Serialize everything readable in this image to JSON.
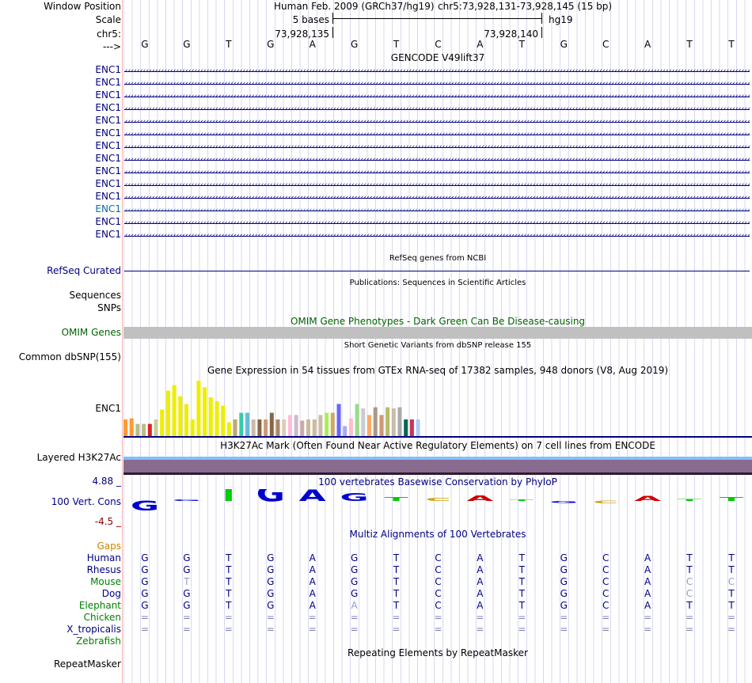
{
  "ruler": {
    "window_position_label": "Window Position",
    "scale_label": "Scale",
    "chrom_label": "chr5:",
    "strand_label": "--->",
    "assembly": "Human Feb. 2009 (GRCh37/hg19)",
    "position": "chr5:73,928,131-73,928,145 (15 bp)",
    "scale_text": "5 bases",
    "db": "hg19",
    "pos_left": "73,928,135",
    "pos_right": "73,928,140"
  },
  "bases": [
    "G",
    "G",
    "T",
    "G",
    "A",
    "G",
    "T",
    "C",
    "A",
    "T",
    "G",
    "C",
    "A",
    "T",
    "T"
  ],
  "gencode": {
    "title": "GENCODE V49lift37",
    "labels": [
      "ENC1",
      "ENC1",
      "ENC1",
      "ENC1",
      "ENC1",
      "ENC1",
      "ENC1",
      "ENC1",
      "ENC1",
      "ENC1",
      "ENC1",
      "ENC1",
      "ENC1",
      "ENC1"
    ],
    "colors": [
      "#000080",
      "#000080",
      "#000080",
      "#000080",
      "#000080",
      "#000080",
      "#000080",
      "#000080",
      "#000080",
      "#000080",
      "#000080",
      "#0c6e9f",
      "#000080",
      "#000080"
    ]
  },
  "refseq": {
    "title": "RefSeq genes from NCBI",
    "label": "RefSeq Curated"
  },
  "publications": {
    "title": "Publications: Sequences in Scientific Articles",
    "label1": "Sequences",
    "label2": "SNPs"
  },
  "omim": {
    "title": "OMIM Gene Phenotypes - Dark Green Can Be Disease-causing",
    "label": "OMIM Genes"
  },
  "dbsnp": {
    "title": "Short Genetic Variants from dbSNP release 155",
    "label": "Common dbSNP(155)"
  },
  "gtex": {
    "title": "Gene Expression in 54 tissues from GTEx RNA-seq of 17382 samples, 948 donors (V8, Aug 2019)",
    "label": "ENC1",
    "values": [
      0.3,
      0.32,
      0.22,
      0.22,
      0.22,
      0.3,
      0.48,
      0.82,
      0.92,
      0.72,
      0.58,
      0.3,
      1.0,
      0.88,
      0.7,
      0.63,
      0.55,
      0.25,
      0.3,
      0.42,
      0.42,
      0.3,
      0.3,
      0.3,
      0.42,
      0.3,
      0.3,
      0.38,
      0.38,
      0.28,
      0.3,
      0.3,
      0.38,
      0.42,
      0.42,
      0.58,
      0.18,
      0.32,
      0.58,
      0.5,
      0.38,
      0.52,
      0.38,
      0.52,
      0.5,
      0.52,
      0.3,
      0.3,
      0.3
    ],
    "colors": [
      "#ff9933",
      "#ff9933",
      "#bbbb88",
      "#bbbb88",
      "#dd2222",
      "#cccc99",
      "#eeee00",
      "#eeee00",
      "#eeee00",
      "#eeee00",
      "#eeee00",
      "#eeee00",
      "#eeee00",
      "#eeee00",
      "#eeee00",
      "#eeee00",
      "#eeee00",
      "#eeee00",
      "#bbaa77",
      "#33ccaa",
      "#66bbdd",
      "#ccbbaa",
      "#886644",
      "#cc9977",
      "#886644",
      "#aa8866",
      "#ddccbb",
      "#ffbbdd",
      "#ccbbcc",
      "#ccaaaa",
      "#ccbb99",
      "#ccbb99",
      "#ccbbaa",
      "#aaee55",
      "#ccaa66",
      "#6666ff",
      "#aaaaee",
      "#ffbbcc",
      "#99dd88",
      "#cccccc",
      "#ffaa66",
      "#aa9988",
      "#cc9977",
      "#bbbb66",
      "#ccbbaa",
      "#aaaaaa",
      "#006655",
      "#cc3355",
      "#aaccff"
    ]
  },
  "h3k27ac": {
    "title": "H3K27Ac Mark (Often Found Near Active Regulatory Elements) on 7 cell lines from ENCODE",
    "label": "Layered H3K27Ac"
  },
  "phylop": {
    "title": "100 vertebrates Basewise Conservation by PhyloP",
    "label": "100 Vert. Cons",
    "max": "4.88 _",
    "min": "-4.5 _",
    "values": [
      -1.5,
      0,
      3.2,
      2.5,
      1.8,
      1.2,
      0.6,
      0.5,
      0.9,
      0,
      -0.3,
      -0.4,
      0.8,
      0.3,
      0.6
    ],
    "colors": [
      "#0000cc",
      "#0000cc",
      "#00cc00",
      "#0000cc",
      "#0000cc",
      "#0000cc",
      "#00cc00",
      "#cca300",
      "#cc0000",
      "#00cc00",
      "#0000cc",
      "#cca300",
      "#cc0000",
      "#00cc00",
      "#00cc00"
    ]
  },
  "multiz": {
    "title": "Multiz Alignments of 100 Vertebrates",
    "gaps_label": "Gaps",
    "species": [
      {
        "name": "Human",
        "color": "#000080",
        "seq": [
          "G",
          "G",
          "T",
          "G",
          "A",
          "G",
          "T",
          "C",
          "A",
          "T",
          "G",
          "C",
          "A",
          "T",
          "T"
        ]
      },
      {
        "name": "Rhesus",
        "color": "#000080",
        "seq": [
          "G",
          "G",
          "T",
          "G",
          "A",
          "G",
          "T",
          "C",
          "A",
          "T",
          "G",
          "C",
          "A",
          "T",
          "T"
        ]
      },
      {
        "name": "Mouse",
        "color": "#008000",
        "seq": [
          "G",
          "T",
          "T",
          "G",
          "A",
          "G",
          "T",
          "C",
          "A",
          "T",
          "G",
          "C",
          "A",
          "C",
          "C"
        ]
      },
      {
        "name": "Dog",
        "color": "#000080",
        "seq": [
          "G",
          "G",
          "T",
          "G",
          "A",
          "G",
          "T",
          "C",
          "A",
          "T",
          "G",
          "C",
          "A",
          "C",
          "T"
        ]
      },
      {
        "name": "Elephant",
        "color": "#008000",
        "seq": [
          "G",
          "G",
          "T",
          "G",
          "A",
          "A",
          "T",
          "C",
          "A",
          "T",
          "G",
          "C",
          "A",
          "T",
          "T"
        ]
      },
      {
        "name": "Chicken",
        "color": "#008000",
        "seq": [
          "=",
          "=",
          "=",
          "=",
          "=",
          "=",
          "=",
          "=",
          "=",
          "=",
          "=",
          "=",
          "=",
          "=",
          "="
        ]
      },
      {
        "name": "X_tropicalis",
        "color": "#000080",
        "seq": [
          "=",
          "=",
          "=",
          "=",
          "=",
          "=",
          "=",
          "=",
          "=",
          "=",
          "=",
          "=",
          "=",
          "=",
          "="
        ]
      },
      {
        "name": "Zebrafish",
        "color": "#008000",
        "seq": [
          "",
          "",
          "",
          "",
          "",
          "",
          "",
          "",
          "",
          "",
          "",
          "",
          "",
          "",
          ""
        ]
      }
    ]
  },
  "repeatmasker": {
    "title": "Repeating Elements by RepeatMasker",
    "label": "RepeatMasker"
  }
}
